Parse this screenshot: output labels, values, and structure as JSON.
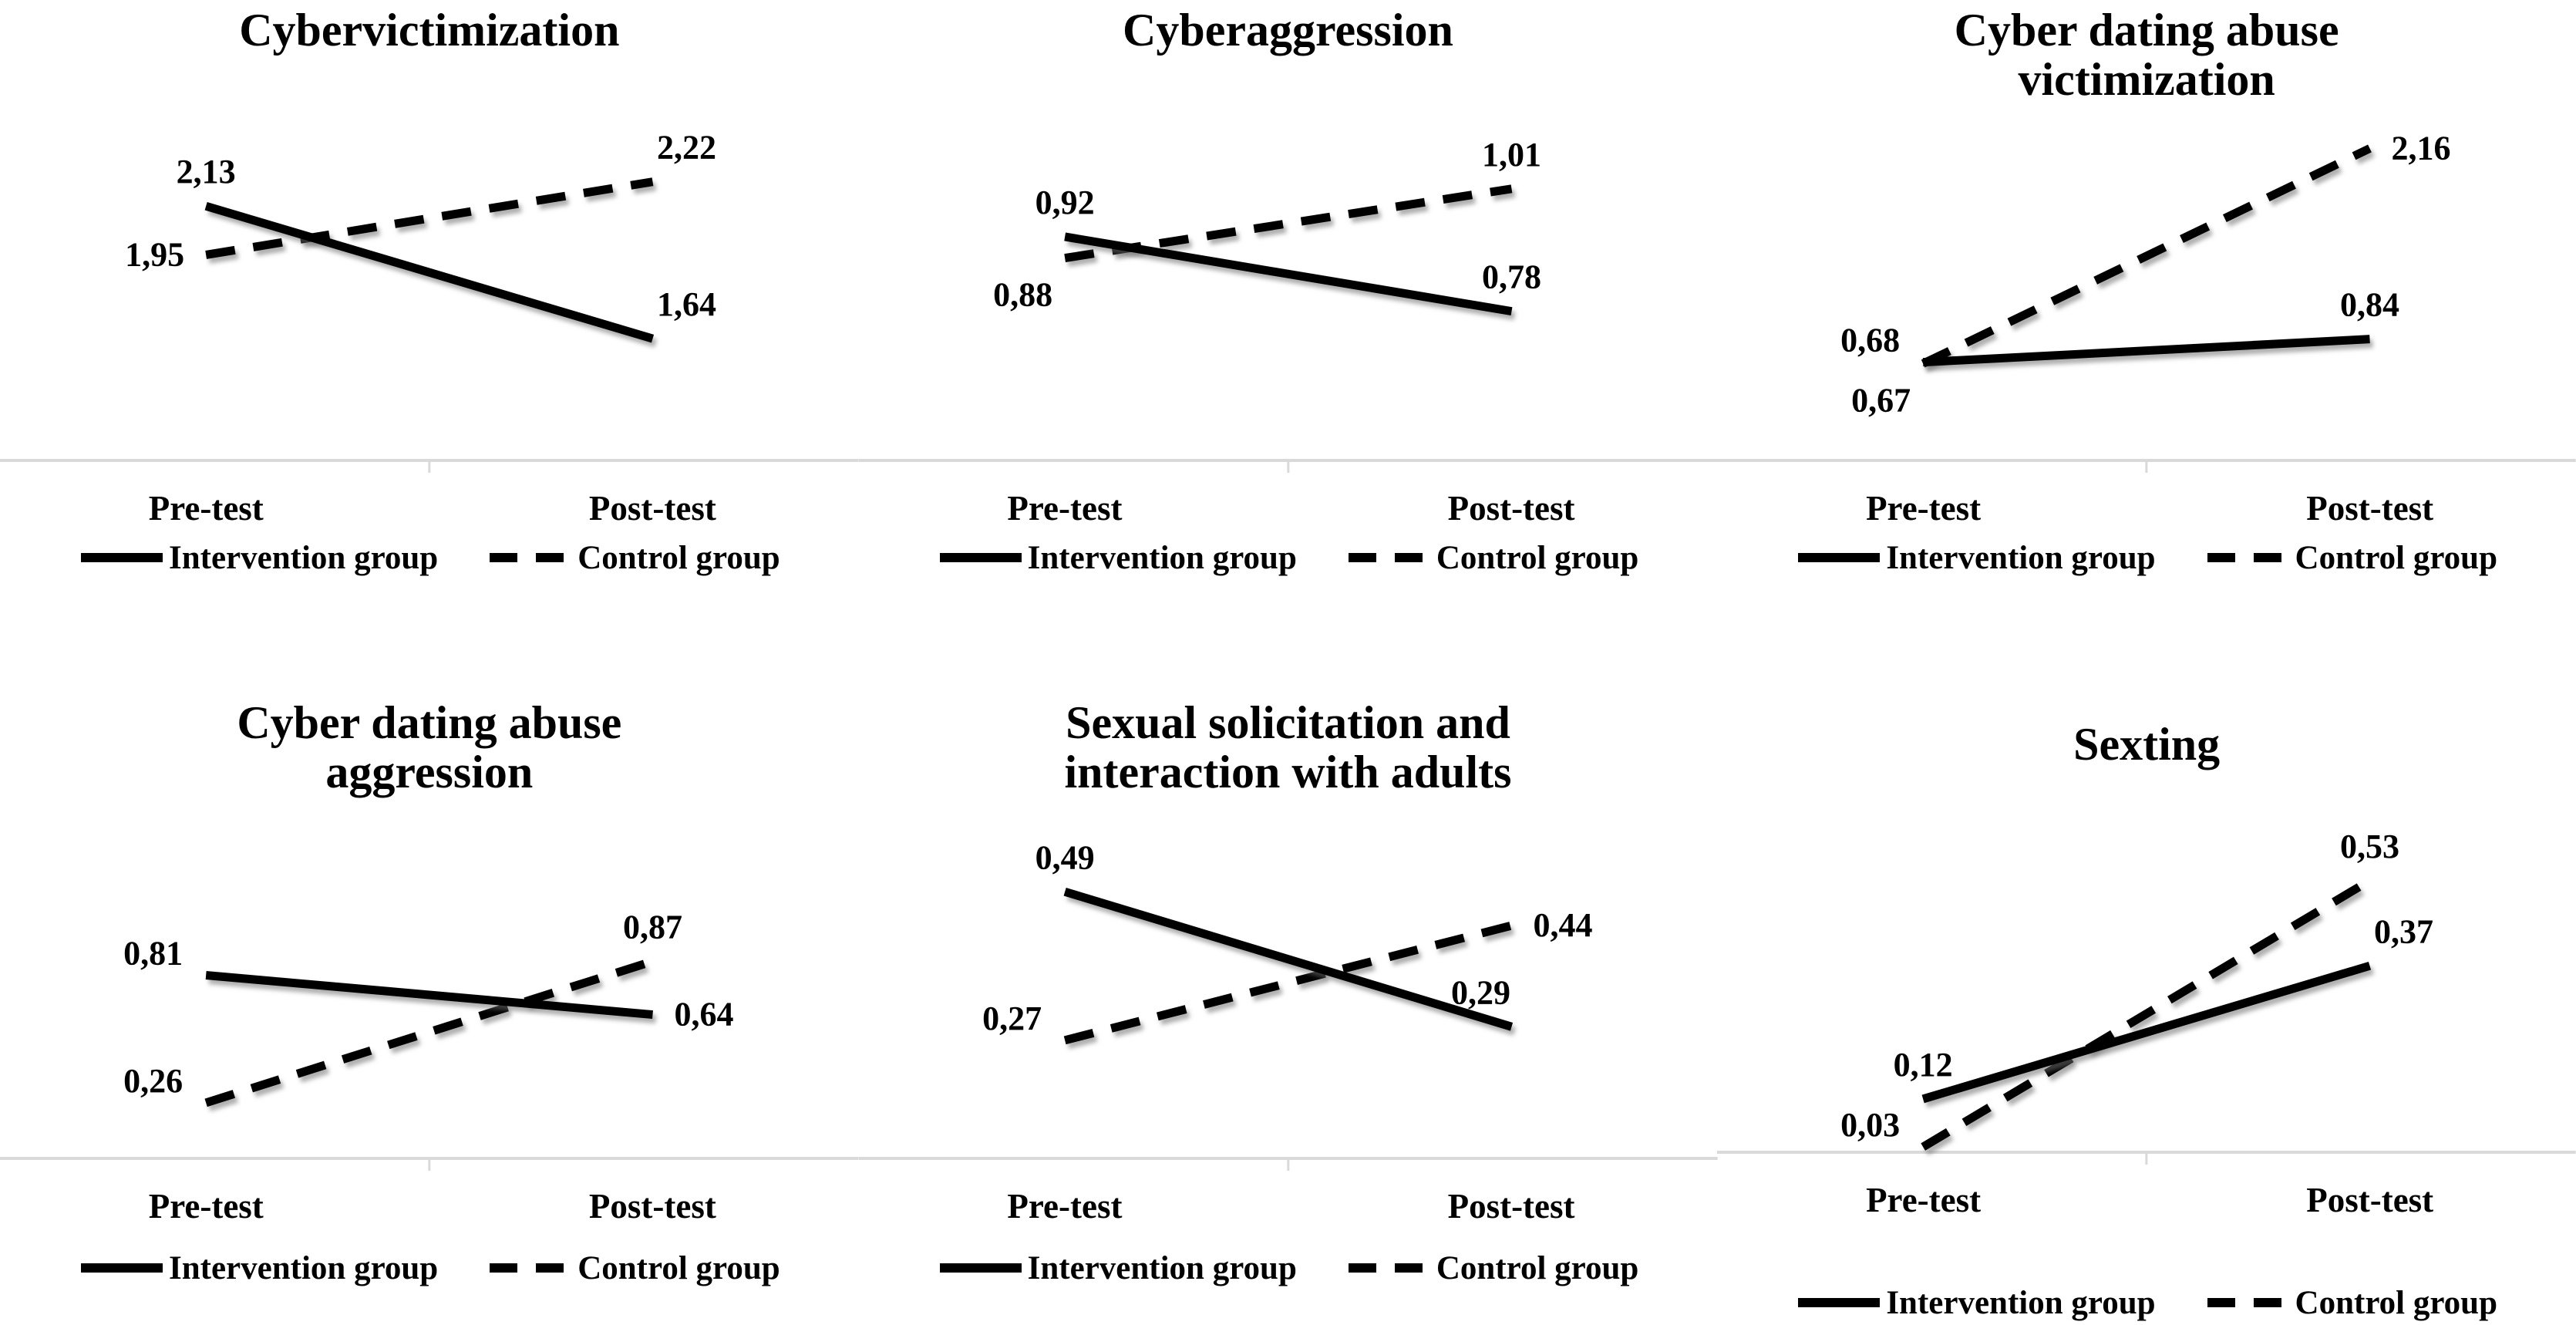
{
  "figure": {
    "background": "#ffffff",
    "axis_color": "#d9d9d9",
    "line_color": "#000000",
    "text_color": "#000000"
  },
  "chart_data": [
    {
      "type": "line",
      "title": "Cybervictimization",
      "categories": [
        "Pre-test",
        "Post-test"
      ],
      "ylim": [
        1.19,
        2.45
      ],
      "grid": false,
      "legend_position": "bottom",
      "series": [
        {
          "name": "Intervention group",
          "line_style": "solid",
          "values": [
            2.13,
            1.64
          ],
          "labels": [
            "2,13",
            "1,64"
          ],
          "label_placement": [
            "above",
            "above-right"
          ]
        },
        {
          "name": "Control group",
          "line_style": "dashed",
          "values": [
            1.95,
            2.22
          ],
          "labels": [
            "1,95",
            "2,22"
          ],
          "label_placement": [
            "left",
            "above-right"
          ]
        }
      ]
    },
    {
      "type": "line",
      "title": "Cyberaggression",
      "categories": [
        "Pre-test",
        "Post-test"
      ],
      "ylim": [
        0.5,
        1.14
      ],
      "grid": false,
      "legend_position": "bottom",
      "series": [
        {
          "name": "Intervention group",
          "line_style": "solid",
          "values": [
            0.92,
            0.78
          ],
          "labels": [
            "0,92",
            "0,78"
          ],
          "label_placement": [
            "above",
            "above"
          ]
        },
        {
          "name": "Control group",
          "line_style": "dashed",
          "values": [
            0.88,
            1.01
          ],
          "labels": [
            "0,88",
            "1,01"
          ],
          "label_placement": [
            "below-left",
            "above"
          ]
        }
      ]
    },
    {
      "type": "line",
      "title": "Cyber dating abuse\nvictimization",
      "categories": [
        "Pre-test",
        "Post-test"
      ],
      "ylim": [
        0.0,
        2.36
      ],
      "grid": false,
      "legend_position": "bottom",
      "series": [
        {
          "name": "Intervention group",
          "line_style": "solid",
          "values": [
            0.68,
            0.84
          ],
          "labels": [
            "0,68",
            "0,84"
          ],
          "label_placement": [
            "left-above",
            "above"
          ]
        },
        {
          "name": "Control group",
          "line_style": "dashed",
          "values": [
            0.67,
            2.16
          ],
          "labels": [
            "0,67",
            "2,16"
          ],
          "label_placement": [
            "below-left",
            "right"
          ]
        }
      ]
    },
    {
      "type": "line",
      "title": "Cyber dating abuse\naggression",
      "categories": [
        "Pre-test",
        "Post-test"
      ],
      "ylim": [
        0.02,
        1.49
      ],
      "grid": false,
      "legend_position": "bottom",
      "series": [
        {
          "name": "Intervention group",
          "line_style": "solid",
          "values": [
            0.81,
            0.64
          ],
          "labels": [
            "0,81",
            "0,64"
          ],
          "label_placement": [
            "left-above",
            "right"
          ]
        },
        {
          "name": "Control group",
          "line_style": "dashed",
          "values": [
            0.26,
            0.87
          ],
          "labels": [
            "0,26",
            "0,87"
          ],
          "label_placement": [
            "left-above",
            "above"
          ]
        }
      ]
    },
    {
      "type": "line",
      "title": "Sexual solicitation and\ninteraction with adults",
      "categories": [
        "Pre-test",
        "Post-test"
      ],
      "ylim": [
        0.095,
        0.6
      ],
      "grid": false,
      "legend_position": "bottom",
      "series": [
        {
          "name": "Intervention group",
          "line_style": "solid",
          "values": [
            0.49,
            0.29
          ],
          "labels": [
            "0,49",
            "0,29"
          ],
          "label_placement": [
            "above",
            "above-left"
          ]
        },
        {
          "name": "Control group",
          "line_style": "dashed",
          "values": [
            0.27,
            0.44
          ],
          "labels": [
            "0,27",
            "0,44"
          ],
          "label_placement": [
            "left-above",
            "right"
          ]
        }
      ]
    },
    {
      "type": "line",
      "title": "Sexting",
      "categories": [
        "Pre-test",
        "Post-test"
      ],
      "ylim": [
        0.02,
        0.66
      ],
      "grid": false,
      "legend_position": "bottom",
      "series": [
        {
          "name": "Intervention group",
          "line_style": "solid",
          "values": [
            0.12,
            0.37
          ],
          "labels": [
            "0,12",
            "0,37"
          ],
          "label_placement": [
            "above",
            "above-right"
          ]
        },
        {
          "name": "Control group",
          "line_style": "dashed",
          "values": [
            0.03,
            0.53
          ],
          "labels": [
            "0,03",
            "0,53"
          ],
          "label_placement": [
            "left-above",
            "above"
          ]
        }
      ]
    }
  ]
}
